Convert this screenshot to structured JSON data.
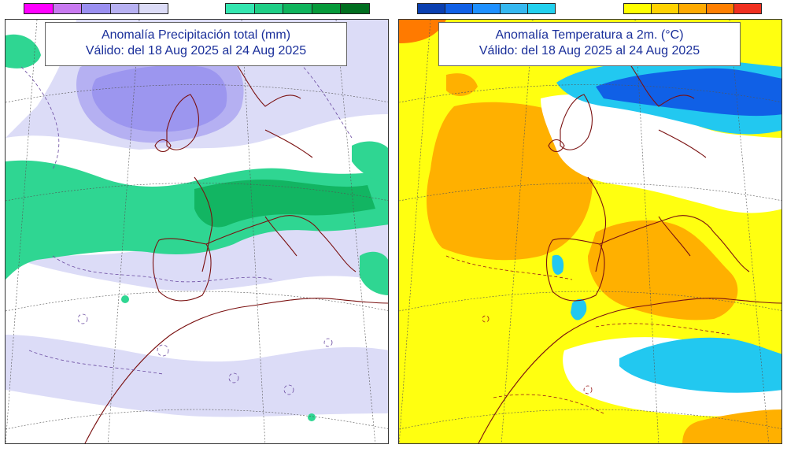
{
  "legends": [
    {
      "name": "precip-negative-legend",
      "colors": [
        "#ff00ff",
        "#c879f0",
        "#9a8ff0",
        "#b7b1f2",
        "#dcdcf7"
      ]
    },
    {
      "name": "precip-positive-legend",
      "colors": [
        "#34e6b0",
        "#1fcf86",
        "#0fb45c",
        "#069a3a",
        "#006e1f"
      ]
    },
    {
      "name": "temp-negative-legend",
      "colors": [
        "#0a3fb0",
        "#1060e6",
        "#1e90ff",
        "#35b8f0",
        "#22d0ee"
      ]
    },
    {
      "name": "temp-positive-legend",
      "colors": [
        "#ffff00",
        "#ffd200",
        "#ffaa00",
        "#ff7f00",
        "#f03020"
      ]
    }
  ],
  "precip_panel": {
    "title_line1": "Anomalía Precipitación total (mm)",
    "title_line2": "Válido: del 18 Aug 2025 al 24 Aug 2025",
    "colors": {
      "ocean_light": "#dcdcf7",
      "purple_dark": "#9c96ef",
      "purple_mid": "#b5b0f2",
      "green_light": "#2fd692",
      "green_dark": "#12b562",
      "white": "#ffffff",
      "coast": "#7a1010",
      "contour": "#6a4aa0"
    }
  },
  "temp_panel": {
    "title_line1": "Anomalía Temperatura a 2m. (°C)",
    "title_line2": "Válido: del 18 Aug 2025 al 24 Aug 2025",
    "colors": {
      "yellow": "#ffff10",
      "orange": "#ffb000",
      "dark_orange": "#ff7a00",
      "blue": "#1060e6",
      "cyan": "#22c8f0",
      "white": "#ffffff",
      "coast": "#7a1010",
      "contour": "#9a1a1a"
    }
  }
}
